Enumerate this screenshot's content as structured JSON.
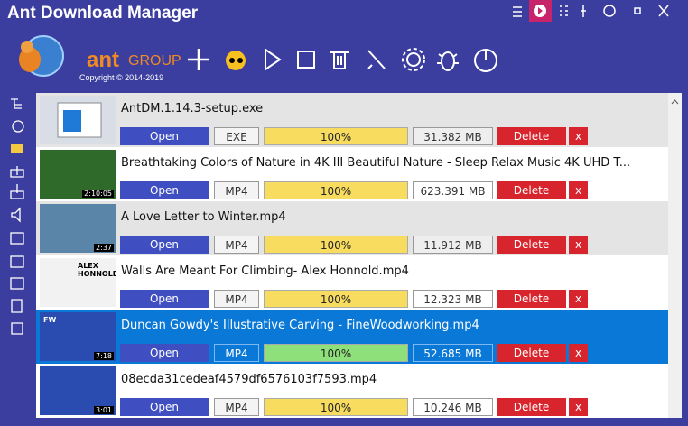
{
  "window": {
    "title": "Ant Download Manager"
  },
  "logo": {
    "brand": "ant",
    "group": "GROUP",
    "copyright": "Copyright © 2014-2019"
  },
  "downloads": [
    {
      "name": "AntDM.1.14.3-setup.exe",
      "open": "Open",
      "type": "EXE",
      "progress": "100%",
      "size": "31.382 MB",
      "delete": "Delete",
      "remove": "x"
    },
    {
      "name": "Breathtaking Colors of Nature in 4K III Beautiful Nature - Sleep Relax Music 4K UHD T...",
      "duration": "2:10:05",
      "open": "Open",
      "type": "MP4",
      "progress": "100%",
      "size": "623.391 MB",
      "delete": "Delete",
      "remove": "x"
    },
    {
      "name": "A Love Letter to Winter.mp4",
      "duration": "2:37",
      "open": "Open",
      "type": "MP4",
      "progress": "100%",
      "size": "11.912 MB",
      "delete": "Delete",
      "remove": "x"
    },
    {
      "name": "Walls Are Meant For Climbing- Alex Honnold.mp4",
      "thumb_text": "ALEX HONNOLD",
      "open": "Open",
      "type": "MP4",
      "progress": "100%",
      "size": "12.323 MB",
      "delete": "Delete",
      "remove": "x"
    },
    {
      "name": "Duncan Gowdy's Illustrative Carving - FineWoodworking.mp4",
      "thumb_text": "FW",
      "duration": "7:18",
      "open": "Open",
      "type": "MP4",
      "progress": "100%",
      "size": "52.685 MB",
      "delete": "Delete",
      "remove": "x"
    },
    {
      "name": "08ecda31cedeaf4579df6576103f7593.mp4",
      "duration": "3:01",
      "open": "Open",
      "type": "MP4",
      "progress": "100%",
      "size": "10.246 MB",
      "delete": "Delete",
      "remove": "x"
    }
  ]
}
